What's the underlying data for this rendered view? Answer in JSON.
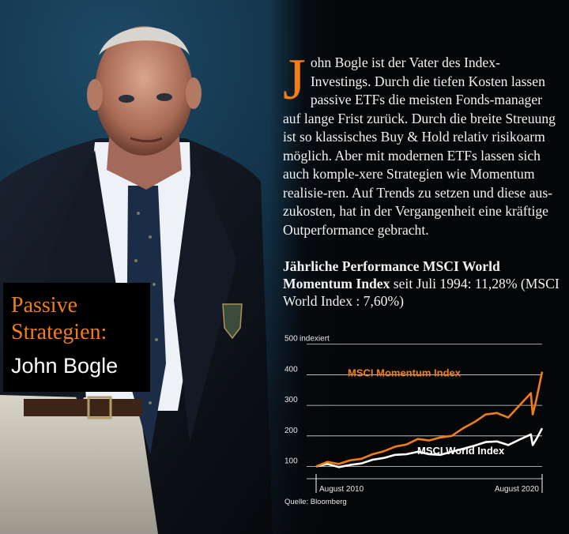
{
  "intro": {
    "dropcap": "J",
    "text": "ohn Bogle ist der Vater des Index-Investings. Durch die tiefen Kosten lassen passive ETFs die meisten Fonds-manager auf lange Frist zurück. Durch die breite Streuung ist so klassisches Buy & Hold relativ risikoarm möglich. Aber mit modernen ETFs lassen sich auch komple-xere Strategien wie Momentum realisie-ren. Auf Trends zu setzen und diese aus-zukosten, hat in der Vergangenheit eine kräftige Outperformance gebracht."
  },
  "performance": {
    "bold": "Jährliche Performance MSCI World Momentum Index",
    "rest": " seit Juli 1994: 11,28% (MSCI World Index : 7,60%)"
  },
  "title": {
    "line1": "Passive",
    "line2": "Strategien:",
    "line3": "John Bogle"
  },
  "colors": {
    "orange": "#f07d1a",
    "white": "#ffffff",
    "background": "#050608"
  },
  "chart_data": {
    "type": "line",
    "ylabel": "indexiert",
    "yticks": [
      100,
      200,
      300,
      400,
      500
    ],
    "ylim": [
      60,
      520
    ],
    "xlim": [
      "2010-08",
      "2020-08"
    ],
    "x_tick_labels": [
      "August 2010",
      "August 2020"
    ],
    "grid": true,
    "source": "Quelle: Bloomberg",
    "x": [
      "2010-08",
      "2011-02",
      "2011-08",
      "2012-02",
      "2012-08",
      "2013-02",
      "2013-08",
      "2014-02",
      "2014-08",
      "2015-02",
      "2015-08",
      "2016-02",
      "2016-08",
      "2017-02",
      "2017-08",
      "2018-02",
      "2018-08",
      "2019-02",
      "2019-08",
      "2020-02",
      "2020-03",
      "2020-05",
      "2020-08"
    ],
    "series": [
      {
        "name": "MSCI Momentum Index",
        "color": "#f07d1a",
        "values": [
          100,
          115,
          108,
          120,
          125,
          140,
          150,
          165,
          172,
          190,
          185,
          195,
          200,
          225,
          245,
          270,
          275,
          260,
          300,
          340,
          270,
          320,
          410
        ]
      },
      {
        "name": "MSCI World Index",
        "color": "#ffffff",
        "values": [
          100,
          108,
          98,
          105,
          110,
          122,
          128,
          138,
          140,
          148,
          140,
          138,
          148,
          158,
          168,
          180,
          182,
          170,
          188,
          205,
          170,
          190,
          225
        ]
      }
    ]
  }
}
